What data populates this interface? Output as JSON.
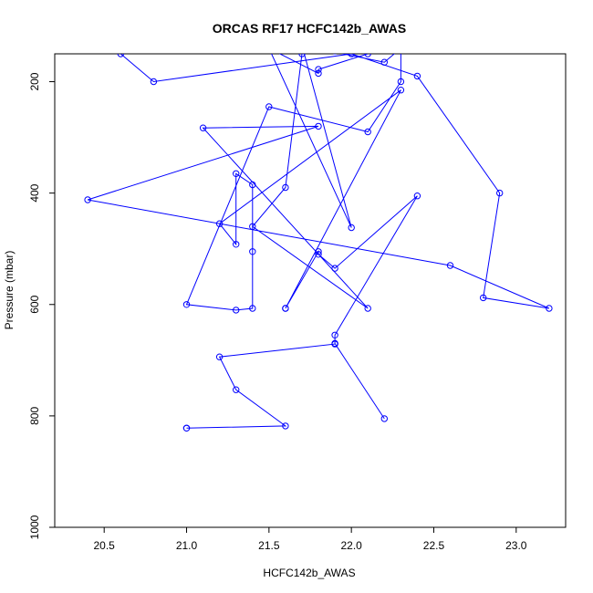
{
  "chart_data": {
    "type": "line",
    "title": "ORCAS RF17 HCFC142b_AWAS",
    "xlabel": "HCFC142b_AWAS",
    "ylabel": "Pressure (mbar)",
    "xlim": [
      20.2,
      23.3
    ],
    "ylim": [
      1000,
      150
    ],
    "y_inverted": true,
    "x_ticks": [
      "20.5",
      "21.0",
      "21.5",
      "22.0",
      "22.5",
      "23.0"
    ],
    "y_ticks": [
      "200",
      "400",
      "600",
      "800",
      "1000"
    ],
    "grid": false,
    "series": [
      {
        "color": "#0000ff",
        "markers": "open-circle",
        "x": [
          21.0,
          21.0,
          21.6,
          21.3,
          21.2,
          21.9,
          21.9,
          22.2,
          21.9,
          21.9,
          22.4,
          21.9,
          21.8,
          21.8,
          21.6,
          21.6,
          22.3,
          21.2,
          21.3,
          21.3,
          21.4,
          21.4,
          21.4,
          21.3,
          21.0,
          21.5,
          22.1,
          22.3,
          22.3,
          22.2,
          21.7,
          22.0,
          21.5,
          21.8,
          21.8,
          22.1,
          21.9,
          21.7,
          21.6,
          21.4,
          22.1,
          21.1,
          21.8,
          20.4,
          22.6,
          23.2,
          22.8,
          22.9,
          22.4,
          22.0,
          20.8,
          20.6
        ],
        "y": [
          822,
          822,
          818,
          753,
          694,
          671,
          670,
          805,
          670,
          655,
          405,
          535,
          510,
          505,
          607,
          607,
          215,
          455,
          492,
          365,
          385,
          505,
          607,
          610,
          600,
          245,
          290,
          200,
          140,
          165,
          135,
          462,
          140,
          185,
          178,
          150,
          145,
          150,
          390,
          460,
          607,
          283,
          280,
          412,
          530,
          607,
          588,
          400,
          190,
          150,
          200,
          150
        ]
      }
    ]
  }
}
